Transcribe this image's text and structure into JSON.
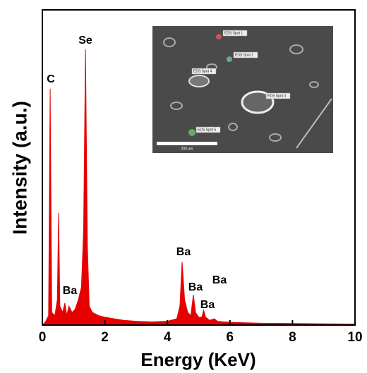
{
  "chart_data": {
    "type": "area",
    "x_label": "Energy (KeV)",
    "y_label": "Intensity (a.u.)",
    "color": "#e60000",
    "x": [
      0,
      0.1,
      0.2,
      0.25,
      0.3,
      0.4,
      0.48,
      0.52,
      0.56,
      0.65,
      0.72,
      0.78,
      0.85,
      0.95,
      1.05,
      1.15,
      1.25,
      1.32,
      1.38,
      1.44,
      1.5,
      1.6,
      1.8,
      2.0,
      2.3,
      2.6,
      3.0,
      3.5,
      4.0,
      4.3,
      4.4,
      4.47,
      4.55,
      4.65,
      4.75,
      4.83,
      4.9,
      5.0,
      5.1,
      5.16,
      5.22,
      5.35,
      5.5,
      5.6,
      5.8,
      6.2,
      7,
      8,
      9,
      10
    ],
    "values": [
      0,
      1,
      3,
      75,
      4,
      3,
      8,
      35.6,
      6,
      4,
      7,
      3,
      6,
      4,
      5,
      8,
      12,
      30,
      87.5,
      25,
      6,
      4,
      3,
      2.5,
      2,
      1.5,
      1.2,
      1,
      1.2,
      2,
      6,
      20,
      8,
      4,
      3,
      9.6,
      4,
      2.5,
      2.5,
      4.7,
      2.5,
      1.5,
      2,
      1.2,
      1,
      0.8,
      0.6,
      0.5,
      0.4,
      0.3
    ],
    "xlim": [
      0,
      10
    ],
    "xticks": [
      0,
      2,
      4,
      6,
      8,
      10
    ],
    "ylim": [
      0,
      100
    ],
    "annotations": [
      "C",
      "Se",
      "Ba",
      "Ba",
      "Ba",
      "Ba",
      "Ba"
    ],
    "inset": {
      "labels": [
        "EDS Spot 1",
        "EDS Spot 2",
        "EDS Spot 4",
        "EDS Spot 3",
        "EDS Spot 5"
      ],
      "scale_bar": "200 um"
    }
  }
}
